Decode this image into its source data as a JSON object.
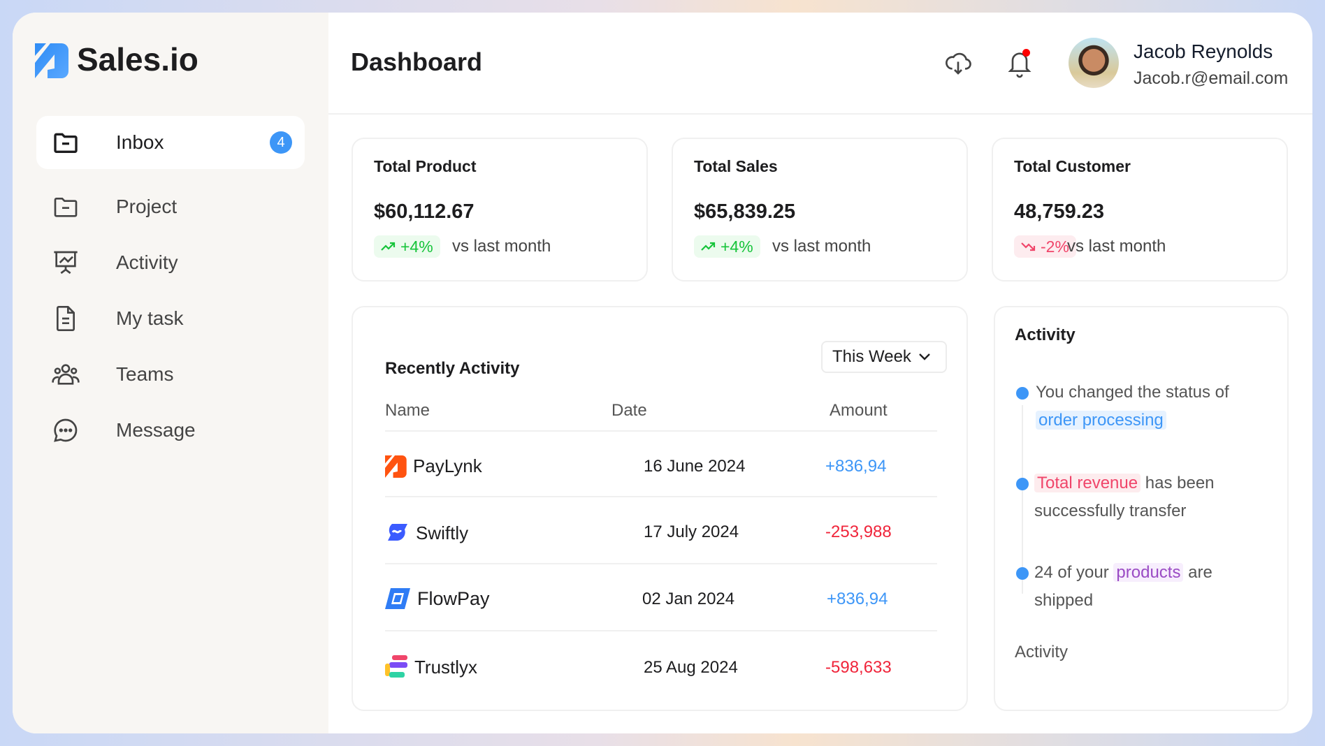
{
  "brand": {
    "name": "Sales.io",
    "color": "#3d96f7"
  },
  "sidebar": {
    "items": [
      {
        "label": "Inbox",
        "icon": "folder-minus-icon",
        "badge": "4",
        "active": true
      },
      {
        "label": "Project",
        "icon": "folder-icon"
      },
      {
        "label": "Activity",
        "icon": "presentation-chart-icon"
      },
      {
        "label": "My task",
        "icon": "document-icon"
      },
      {
        "label": "Teams",
        "icon": "users-icon"
      },
      {
        "label": "Message",
        "icon": "chat-bubble-icon"
      }
    ]
  },
  "header": {
    "title": "Dashboard",
    "user": {
      "name": "Jacob Reynolds",
      "email": "Jacob.r@email.com"
    }
  },
  "stats": [
    {
      "title": "Total Product",
      "value": "$60,112.67",
      "change": "+4%",
      "trend": "up",
      "vs": "vs last month"
    },
    {
      "title": "Total Sales",
      "value": "$65,839.25",
      "change": "+4%",
      "trend": "up",
      "vs": "vs last month"
    },
    {
      "title": "Total Customer",
      "value": "48,759.23",
      "change": "-2%",
      "trend": "down",
      "vs": "vs last month"
    }
  ],
  "recent": {
    "title": "Recently Activity",
    "filter": "This Week",
    "columns": [
      "Name",
      "Date",
      "Amount"
    ],
    "rows": [
      {
        "name": "PayLynk",
        "date": "16 June 2024",
        "amount": "+836,94"
      },
      {
        "name": "Swiftly",
        "date": "17 July 2024",
        "amount": "-253,988"
      },
      {
        "name": "FlowPay",
        "date": "02 Jan 2024",
        "amount": "+836,94"
      },
      {
        "name": "Trustlyx",
        "date": "25 Aug 2024",
        "amount": "-598,633"
      }
    ]
  },
  "activity": {
    "title": "Activity",
    "items": [
      {
        "pre": "You changed the status of ",
        "hl": "order processing",
        "post": ""
      },
      {
        "pre": "",
        "hl": "Total revenue",
        "post": " has been successfully transfer"
      },
      {
        "pre": "24 of your ",
        "hl": "products",
        "post": " are shipped"
      }
    ],
    "footer": "Activity"
  },
  "colors": {
    "positive": "#3d96f7",
    "negative": "#f0243a",
    "up": "#16c43a",
    "down": "#f0456a"
  }
}
